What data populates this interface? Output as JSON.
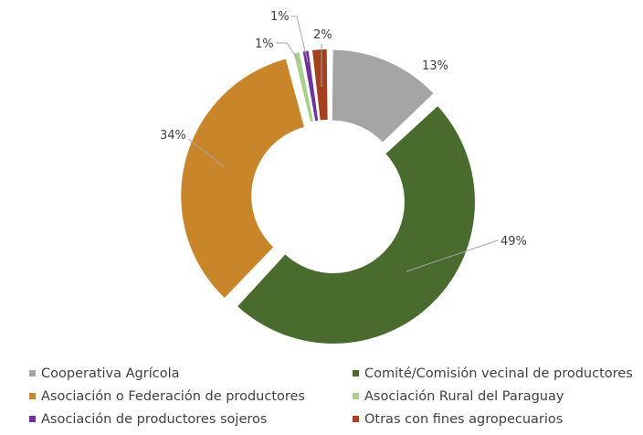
{
  "chart_data": {
    "type": "pie",
    "donut": true,
    "categories": [
      "Cooperativa Agrícola",
      "Comité/Comisión vecinal de productores",
      "Asociación o Federación de productores",
      "Asociación Rural del Paraguay",
      "Asociación de productores sojeros",
      "Otras con fines agropecuarios"
    ],
    "values": [
      13,
      49,
      34,
      1,
      1,
      2
    ],
    "data_labels": [
      "13%",
      "49%",
      "34%",
      "1%",
      "1%",
      "2%"
    ],
    "colors": [
      "#a5a5a5",
      "#4a6b2e",
      "#c9852a",
      "#a9d18e",
      "#7030a0",
      "#a5401f"
    ],
    "legend_position": "bottom"
  }
}
